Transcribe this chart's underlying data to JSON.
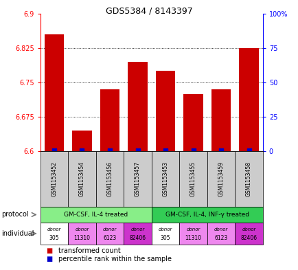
{
  "title": "GDS5384 / 8143397",
  "samples": [
    "GSM1153452",
    "GSM1153454",
    "GSM1153456",
    "GSM1153457",
    "GSM1153453",
    "GSM1153455",
    "GSM1153459",
    "GSM1153458"
  ],
  "bar_values": [
    6.855,
    6.645,
    6.735,
    6.795,
    6.775,
    6.725,
    6.735,
    6.825
  ],
  "bar_bottom": 6.6,
  "percentile_values": [
    0.48,
    0.41,
    0.47,
    0.47,
    0.47,
    0.45,
    0.47,
    0.47
  ],
  "bar_color": "#cc0000",
  "dot_color": "#0000cc",
  "ylim_left": [
    6.6,
    6.9
  ],
  "ylim_right": [
    0,
    100
  ],
  "yticks_left": [
    6.6,
    6.675,
    6.75,
    6.825,
    6.9
  ],
  "yticks_right": [
    0,
    25,
    50,
    75,
    100
  ],
  "ytick_labels_left": [
    "6.6",
    "6.675",
    "6.75",
    "6.825",
    "6.9"
  ],
  "ytick_labels_right": [
    "0",
    "25",
    "50",
    "75",
    "100%"
  ],
  "grid_values": [
    6.675,
    6.75,
    6.825
  ],
  "protocol_groups": [
    {
      "label": "GM-CSF, IL-4 treated",
      "start": 0,
      "end": 3,
      "color": "#88ee88"
    },
    {
      "label": "GM-CSF, IL-4, INF-γ treated",
      "start": 4,
      "end": 7,
      "color": "#33cc55"
    }
  ],
  "individuals": [
    {
      "label": "donor\n305",
      "color": "#ffffff"
    },
    {
      "label": "donor\n11310",
      "color": "#ee88ee"
    },
    {
      "label": "donor\n6123",
      "color": "#ee88ee"
    },
    {
      "label": "donor\n82406",
      "color": "#cc33cc"
    },
    {
      "label": "donor\n305",
      "color": "#ffffff"
    },
    {
      "label": "donor\n11310",
      "color": "#ee88ee"
    },
    {
      "label": "donor\n6123",
      "color": "#ee88ee"
    },
    {
      "label": "donor\n82406",
      "color": "#cc33cc"
    }
  ],
  "legend_bar_color": "#cc0000",
  "legend_dot_color": "#0000cc",
  "legend_bar_label": "transformed count",
  "legend_dot_label": "percentile rank within the sample",
  "protocol_label": "protocol",
  "individual_label": "individual",
  "sample_bg_color": "#cccccc"
}
